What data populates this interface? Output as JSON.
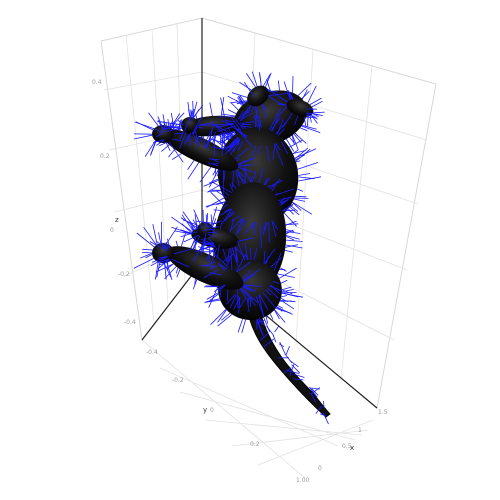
{
  "chart_data": {
    "type": "mesh3d",
    "title": "",
    "axes": {
      "x": {
        "label": "x",
        "ticks": [
          "0",
          "0.5",
          "1",
          "1.5"
        ]
      },
      "y": {
        "label": "y",
        "ticks": [
          "-0.4",
          "-0.2",
          "0",
          "0.2",
          "1.00"
        ]
      },
      "z": {
        "label": "z",
        "ticks": [
          "-0.4",
          "-0.2",
          "0",
          "0.2",
          "0.4"
        ]
      }
    },
    "surface_color": "#111111",
    "normal_vector_color": "#1a1aff",
    "grid": true,
    "legend": "none"
  }
}
